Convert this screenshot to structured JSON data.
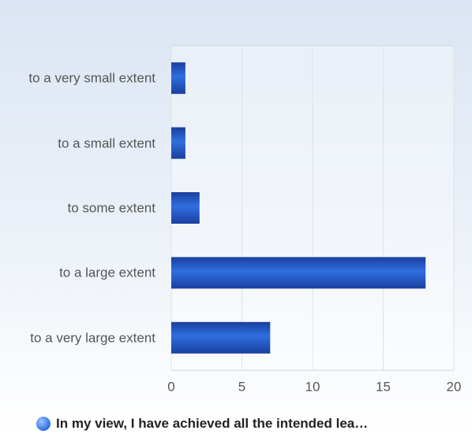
{
  "chart_data": {
    "type": "bar",
    "orientation": "horizontal",
    "categories": [
      "to a very small extent",
      "to a small extent",
      "to some extent",
      "to a large extent",
      "to a very large extent"
    ],
    "series": [
      {
        "name": "In my view, I have achieved all the intended lea…",
        "color": "#2f6fe0",
        "values": [
          1,
          1,
          2,
          18,
          7
        ]
      }
    ],
    "xlim": [
      0,
      20
    ],
    "xticks": [
      0,
      5,
      10,
      15,
      20
    ],
    "grid": true,
    "legend": "bottom"
  }
}
